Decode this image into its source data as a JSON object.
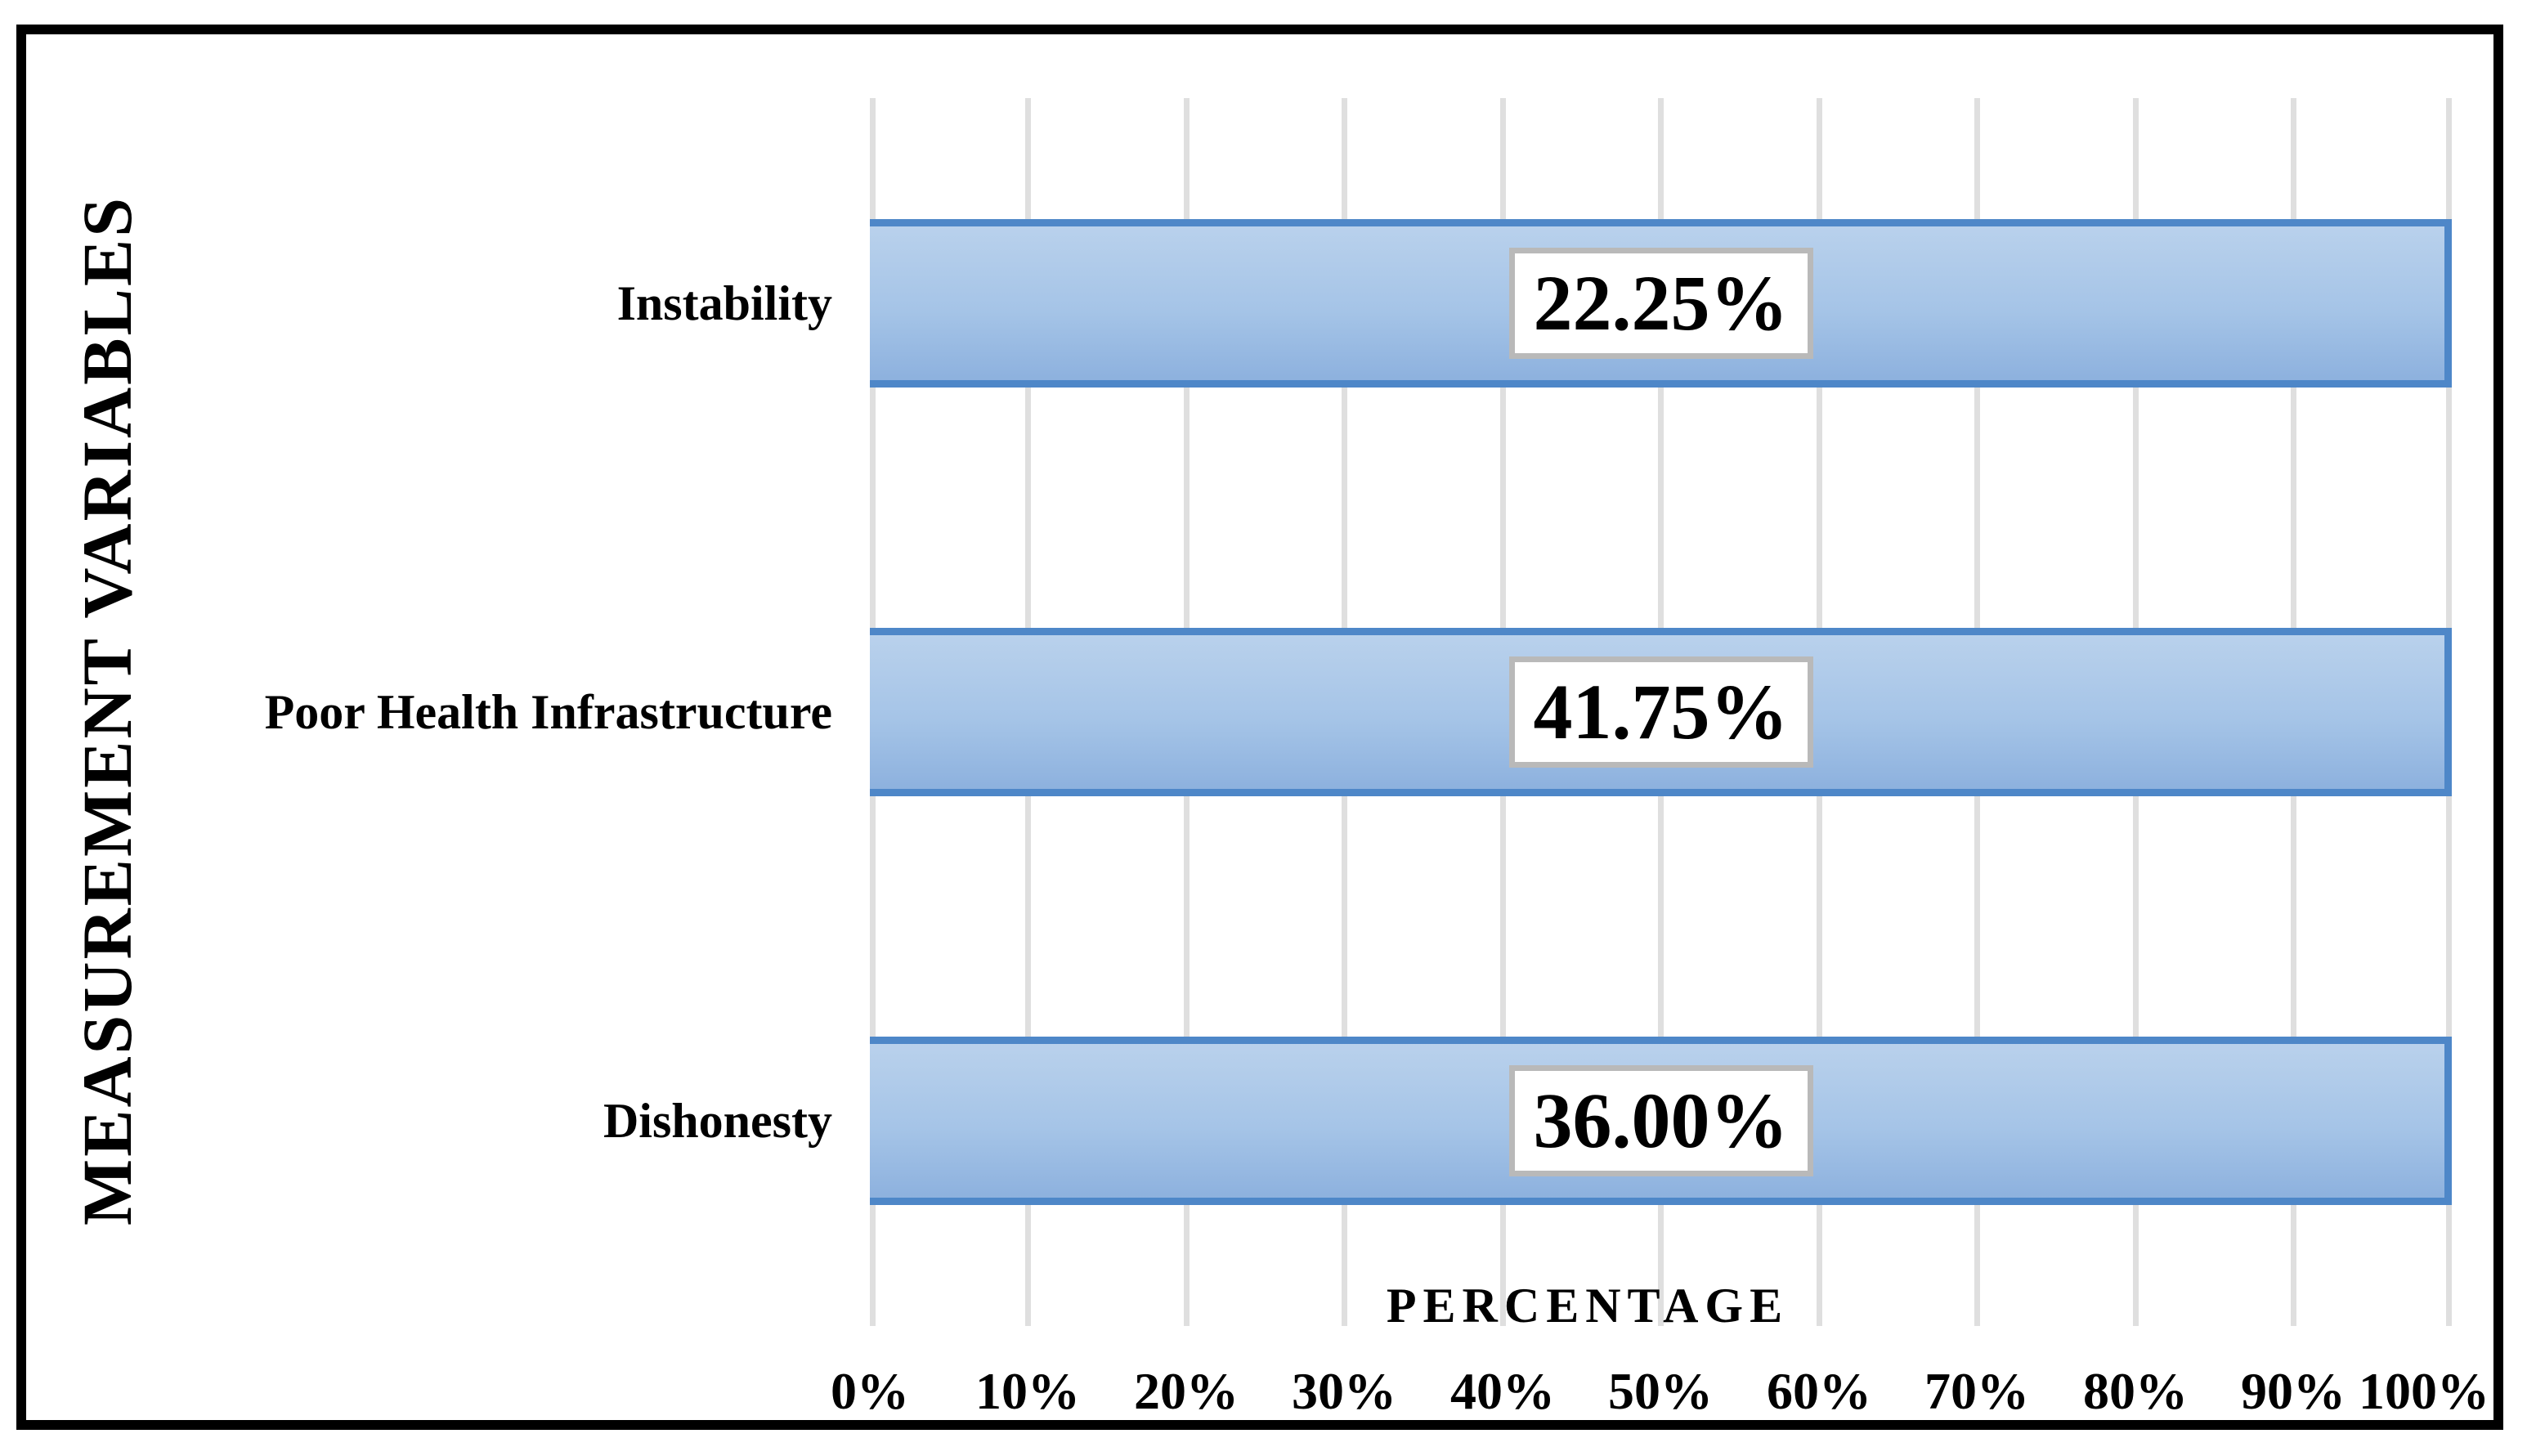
{
  "figure": {
    "kind": "horizontal bar chart in black frame",
    "background": "#FFFFFF",
    "frame_color": "#000000"
  },
  "chart_data": {
    "type": "bar",
    "orientation": "horizontal",
    "xlabel": "PERCENTAGE",
    "ylabel": "MEASUREMENT VARIABLES",
    "categories": [
      "Instability",
      "Poor Health Infrastructure",
      "Dishonesty"
    ],
    "values": [
      22.25,
      41.75,
      36.0
    ],
    "value_labels": [
      "22.25%",
      "41.75%",
      "36.00%"
    ],
    "bar_display_widths_pct": [
      100,
      100,
      100
    ],
    "x_ticks": [
      "0%",
      "10%",
      "20%",
      "30%",
      "40%",
      "50%",
      "60%",
      "70%",
      "80%",
      "90%",
      "100%"
    ],
    "xlim": [
      0,
      100
    ],
    "grid": "vertical-major",
    "legend": "none",
    "colors": {
      "bar_fill_top": "#B9D1EC",
      "bar_fill_bottom": "#8DB1DE",
      "bar_border": "#4E87C8",
      "gridline": "#DFDFDF",
      "value_box_bg": "#FFFFFF",
      "value_box_border": "#B9B9B9",
      "text": "#000000"
    }
  }
}
